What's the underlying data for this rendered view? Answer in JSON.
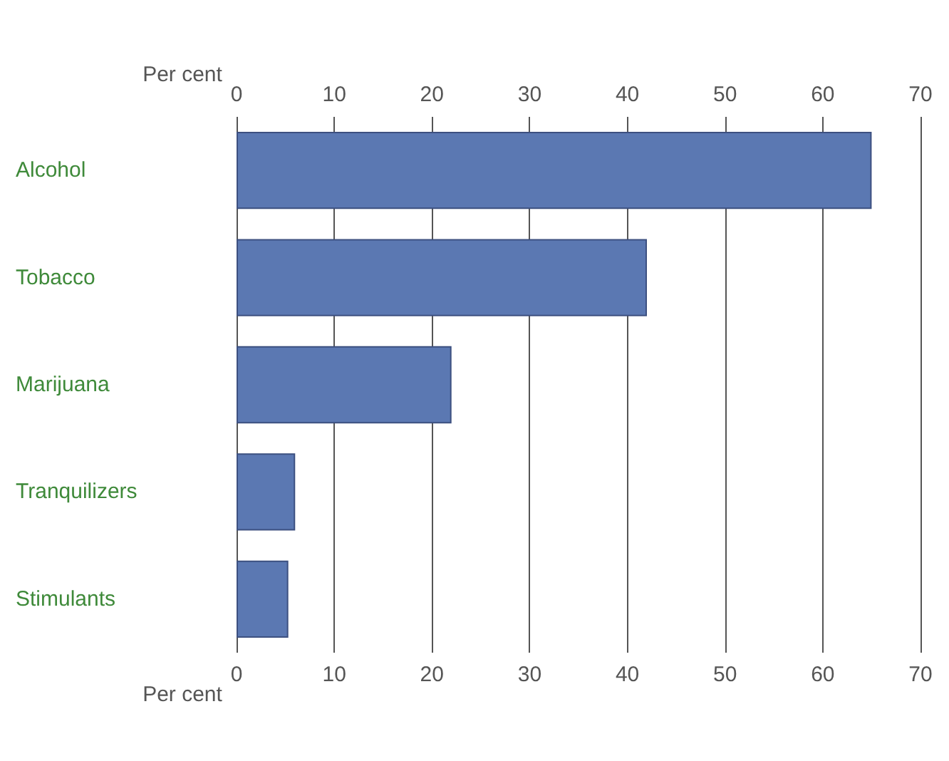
{
  "chart_data": {
    "type": "bar",
    "orientation": "horizontal",
    "xlabel": "Per cent",
    "x2label": "Per cent",
    "categories": [
      "Alcohol",
      "Tobacco",
      "Marijuana",
      "Tranquilizers",
      "Stimulants"
    ],
    "values": [
      65,
      42,
      22,
      6,
      5.3
    ],
    "color": "#5b78b2",
    "xlim": [
      0,
      70
    ],
    "xticks": [
      0,
      10,
      20,
      30,
      40,
      50,
      60,
      70
    ],
    "x2lim": [
      0,
      70
    ],
    "x2ticks": [
      0,
      10,
      20,
      30,
      40,
      50,
      60,
      70
    ],
    "grid": "x"
  }
}
